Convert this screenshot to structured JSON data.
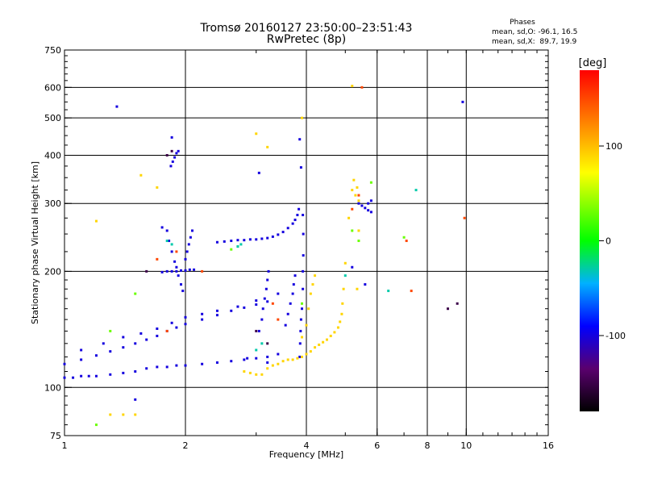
{
  "chart_data": {
    "type": "scatter",
    "title": "Tromsø 20160127 23:50:00–23:51:43",
    "subtitle": "RwPretec (8p)",
    "xlabel": "Frequency [MHz]",
    "ylabel": "Stationary phase Virtual Height [km]",
    "x_scale": "log",
    "y_scale": "log",
    "xlim": [
      1,
      16
    ],
    "ylim": [
      75,
      750
    ],
    "x_ticks": [
      1,
      2,
      4,
      6,
      8,
      10,
      16
    ],
    "x_tick_labels": [
      "1",
      "2",
      "4",
      "6",
      "8",
      "10",
      "16"
    ],
    "x_grid": [
      2,
      4,
      6,
      8,
      10
    ],
    "y_ticks": [
      75,
      100,
      200,
      300,
      400,
      500,
      600,
      750
    ],
    "y_tick_labels": [
      "75",
      "100",
      "200",
      "300",
      "400",
      "500",
      "600",
      "750"
    ],
    "y_grid": [
      100,
      200,
      300,
      400,
      500,
      600
    ],
    "grid": true,
    "stats": {
      "title": "Phases",
      "line_o": "mean, sd,O: -96.1, 16.5",
      "line_x": "mean, sd,X:  89.7, 19.9"
    },
    "colorbar": {
      "label": "[deg]",
      "range": [
        -180,
        180
      ],
      "ticks": [
        100,
        0,
        -100
      ],
      "tick_labels": [
        "100",
        "0",
        "-100"
      ],
      "placement": "right",
      "colors": [
        "#000000",
        "#5a006e",
        "#0000ff",
        "#00b0ff",
        "#00ff00",
        "#ffff00",
        "#ff8000",
        "#ff0000"
      ]
    },
    "traces": [
      {
        "phase": -100,
        "points": [
          [
            1.0,
            106
          ],
          [
            1.05,
            106
          ],
          [
            1.1,
            107
          ],
          [
            1.15,
            107
          ],
          [
            1.2,
            107
          ],
          [
            1.3,
            108
          ],
          [
            1.4,
            109
          ],
          [
            1.5,
            110
          ],
          [
            1.6,
            112
          ],
          [
            1.7,
            113
          ],
          [
            1.8,
            113
          ],
          [
            1.9,
            114
          ],
          [
            2.0,
            114
          ],
          [
            2.2,
            115
          ],
          [
            2.4,
            116
          ],
          [
            2.6,
            117
          ],
          [
            2.8,
            118
          ],
          [
            3.0,
            119
          ],
          [
            3.2,
            120
          ],
          [
            3.4,
            122
          ]
        ]
      },
      {
        "phase": -100,
        "points": [
          [
            1.0,
            115
          ],
          [
            1.1,
            118
          ],
          [
            1.2,
            121
          ],
          [
            1.3,
            124
          ],
          [
            1.4,
            127
          ],
          [
            1.5,
            130
          ],
          [
            1.6,
            133
          ],
          [
            1.7,
            136
          ],
          [
            1.8,
            140
          ],
          [
            1.9,
            143
          ],
          [
            2.0,
            146
          ],
          [
            2.2,
            150
          ],
          [
            2.4,
            154
          ],
          [
            2.6,
            158
          ],
          [
            2.8,
            161
          ],
          [
            3.0,
            164
          ],
          [
            3.2,
            167
          ]
        ]
      },
      {
        "phase": -100,
        "points": [
          [
            1.1,
            125
          ],
          [
            1.25,
            130
          ],
          [
            1.4,
            135
          ],
          [
            1.55,
            138
          ],
          [
            1.7,
            142
          ],
          [
            1.85,
            147
          ],
          [
            2.0,
            152
          ],
          [
            2.2,
            155
          ],
          [
            2.4,
            158
          ],
          [
            2.7,
            162
          ],
          [
            3.0,
            168
          ],
          [
            3.4,
            175
          ]
        ]
      },
      {
        "phase": -100,
        "points": [
          [
            1.75,
            199
          ],
          [
            1.8,
            200
          ],
          [
            1.85,
            200
          ],
          [
            1.9,
            200
          ],
          [
            1.95,
            201
          ],
          [
            2.0,
            201
          ],
          [
            2.05,
            202
          ],
          [
            2.1,
            202
          ]
        ]
      },
      {
        "phase": -100,
        "points": [
          [
            1.75,
            260
          ],
          [
            1.8,
            255
          ],
          [
            1.82,
            240
          ],
          [
            1.85,
            225
          ],
          [
            1.88,
            212
          ],
          [
            1.9,
            205
          ],
          [
            1.92,
            195
          ],
          [
            1.95,
            185
          ],
          [
            1.97,
            178
          ]
        ]
      },
      {
        "phase": -100,
        "points": [
          [
            1.84,
            375
          ],
          [
            1.86,
            385
          ],
          [
            1.88,
            395
          ],
          [
            1.9,
            405
          ],
          [
            1.92,
            410
          ]
        ]
      },
      {
        "phase": -100,
        "points": [
          [
            2.0,
            215
          ],
          [
            2.02,
            225
          ],
          [
            2.04,
            235
          ],
          [
            2.06,
            245
          ],
          [
            2.08,
            255
          ]
        ]
      },
      {
        "phase": -100,
        "points": [
          [
            2.4,
            238
          ],
          [
            2.5,
            239
          ],
          [
            2.6,
            240
          ],
          [
            2.7,
            241
          ],
          [
            2.8,
            241
          ],
          [
            2.9,
            242
          ],
          [
            3.0,
            242
          ],
          [
            3.1,
            243
          ],
          [
            3.2,
            244
          ],
          [
            3.3,
            246
          ],
          [
            3.4,
            249
          ],
          [
            3.5,
            253
          ],
          [
            3.6,
            259
          ],
          [
            3.7,
            266
          ],
          [
            3.75,
            272
          ],
          [
            3.8,
            280
          ],
          [
            3.83,
            290
          ]
        ]
      },
      {
        "phase": -100,
        "points": [
          [
            3.05,
            140
          ],
          [
            3.1,
            150
          ],
          [
            3.12,
            160
          ],
          [
            3.15,
            170
          ],
          [
            3.18,
            180
          ],
          [
            3.2,
            190
          ],
          [
            3.22,
            200
          ]
        ]
      },
      {
        "phase": -100,
        "points": [
          [
            3.55,
            145
          ],
          [
            3.6,
            155
          ],
          [
            3.65,
            165
          ],
          [
            3.7,
            175
          ],
          [
            3.72,
            185
          ],
          [
            3.75,
            195
          ]
        ]
      },
      {
        "phase": -100,
        "points": [
          [
            3.85,
            120
          ],
          [
            3.86,
            130
          ],
          [
            3.87,
            140
          ],
          [
            3.88,
            150
          ],
          [
            3.9,
            160
          ],
          [
            3.92,
            180
          ],
          [
            3.92,
            200
          ],
          [
            3.93,
            220
          ],
          [
            3.93,
            250
          ],
          [
            3.92,
            280
          ]
        ]
      },
      {
        "phase": -100,
        "points": [
          [
            5.4,
            300
          ],
          [
            5.5,
            296
          ],
          [
            5.6,
            292
          ],
          [
            5.7,
            288
          ],
          [
            5.8,
            285
          ],
          [
            5.7,
            300
          ],
          [
            5.8,
            305
          ]
        ]
      },
      {
        "phase": -100,
        "points": [
          [
            3.05,
            360
          ],
          [
            3.85,
            440
          ],
          [
            3.88,
            372
          ],
          [
            1.85,
            445
          ],
          [
            1.35,
            535
          ],
          [
            9.8,
            550
          ],
          [
            5.2,
            205
          ],
          [
            5.6,
            185
          ],
          [
            3.2,
            116
          ],
          [
            2.85,
            119
          ],
          [
            1.5,
            93
          ]
        ]
      },
      {
        "phase": 90,
        "points": [
          [
            2.8,
            110
          ],
          [
            2.9,
            109
          ],
          [
            3.0,
            108
          ],
          [
            3.1,
            108
          ],
          [
            3.2,
            112
          ],
          [
            3.3,
            114
          ],
          [
            3.4,
            115
          ],
          [
            3.5,
            117
          ],
          [
            3.6,
            118
          ],
          [
            3.7,
            118
          ],
          [
            3.8,
            119
          ],
          [
            3.9,
            120
          ],
          [
            4.0,
            122
          ],
          [
            4.1,
            124
          ],
          [
            4.2,
            127
          ],
          [
            4.3,
            129
          ],
          [
            4.4,
            131
          ],
          [
            4.5,
            133
          ],
          [
            4.6,
            136
          ],
          [
            4.7,
            139
          ],
          [
            4.8,
            143
          ],
          [
            4.85,
            148
          ],
          [
            4.9,
            155
          ],
          [
            4.92,
            165
          ],
          [
            4.95,
            180
          ]
        ]
      },
      {
        "phase": 90,
        "points": [
          [
            3.9,
            135
          ],
          [
            4.0,
            145
          ],
          [
            4.05,
            160
          ],
          [
            4.1,
            175
          ],
          [
            4.15,
            185
          ],
          [
            4.2,
            195
          ]
        ]
      },
      {
        "phase": 90,
        "points": [
          [
            5.2,
            325
          ],
          [
            5.3,
            315
          ],
          [
            5.4,
            305
          ],
          [
            5.35,
            330
          ],
          [
            5.25,
            345
          ],
          [
            5.1,
            275
          ],
          [
            5.4,
            255
          ],
          [
            5.0,
            210
          ],
          [
            5.35,
            180
          ]
        ]
      },
      {
        "phase": 90,
        "points": [
          [
            1.3,
            85
          ],
          [
            1.4,
            85
          ],
          [
            1.5,
            85
          ],
          [
            1.7,
            330
          ],
          [
            3.0,
            455
          ],
          [
            3.9,
            500
          ],
          [
            5.2,
            605
          ],
          [
            1.55,
            355
          ],
          [
            1.2,
            270
          ],
          [
            3.2,
            420
          ]
        ]
      },
      {
        "phase": 30,
        "points": [
          [
            2.6,
            228
          ],
          [
            2.7,
            232
          ],
          [
            5.2,
            255
          ],
          [
            5.4,
            240
          ],
          [
            1.5,
            175
          ],
          [
            3.9,
            165
          ],
          [
            1.3,
            140
          ],
          [
            7.0,
            245
          ],
          [
            1.2,
            80
          ],
          [
            5.8,
            340
          ]
        ]
      },
      {
        "phase": 150,
        "points": [
          [
            1.7,
            215
          ],
          [
            1.9,
            225
          ],
          [
            2.2,
            200
          ],
          [
            3.4,
            150
          ],
          [
            5.2,
            290
          ],
          [
            5.4,
            315
          ],
          [
            7.1,
            240
          ],
          [
            9.9,
            275
          ],
          [
            7.3,
            178
          ],
          [
            5.5,
            600
          ],
          [
            3.3,
            165
          ],
          [
            1.8,
            140
          ]
        ]
      },
      {
        "phase": -30,
        "points": [
          [
            1.8,
            240
          ],
          [
            1.85,
            235
          ],
          [
            2.7,
            232
          ],
          [
            2.75,
            235
          ],
          [
            3.0,
            125
          ],
          [
            6.4,
            178
          ],
          [
            7.5,
            325
          ],
          [
            5.0,
            195
          ],
          [
            3.1,
            130
          ]
        ]
      },
      {
        "phase": -150,
        "points": [
          [
            1.8,
            400
          ],
          [
            1.85,
            410
          ],
          [
            3.0,
            140
          ],
          [
            3.2,
            130
          ],
          [
            9.5,
            165
          ],
          [
            9.0,
            160
          ],
          [
            1.6,
            200
          ]
        ]
      }
    ]
  }
}
